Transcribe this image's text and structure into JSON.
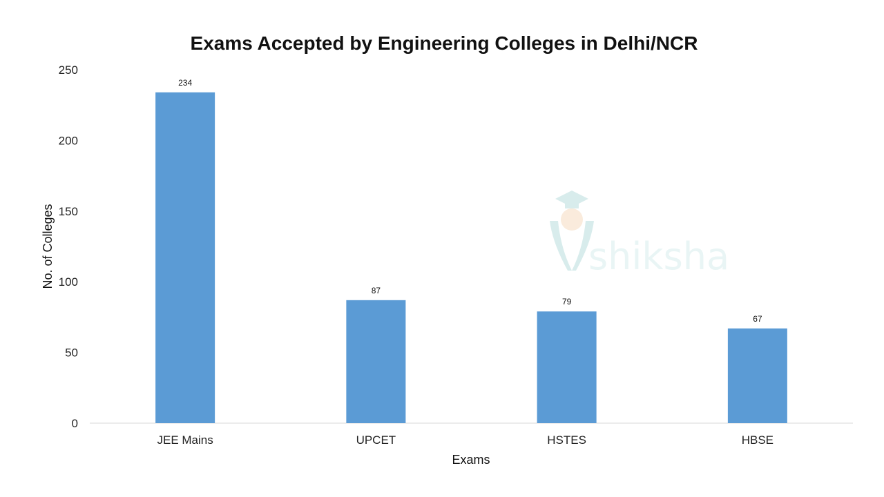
{
  "chart_data": {
    "type": "bar",
    "title": "Exams Accepted by Engineering Colleges in Delhi/NCR",
    "xlabel": "Exams",
    "ylabel": "No. of Colleges",
    "categories": [
      "JEE Mains",
      "UPCET",
      "HSTES",
      "HBSE"
    ],
    "values": [
      234,
      87,
      79,
      67
    ],
    "data_labels": [
      "234",
      "87",
      "79",
      "67"
    ],
    "ylim": [
      0,
      250
    ],
    "yticks": [
      0,
      50,
      100,
      150,
      200,
      250
    ],
    "ytick_labels": [
      "0",
      "50",
      "100",
      "150",
      "200",
      "250"
    ],
    "grid": false,
    "legend": "none",
    "bar_color": "#5b9bd5"
  },
  "watermark": {
    "text": "shiksha",
    "color": "#c9e6e6"
  }
}
